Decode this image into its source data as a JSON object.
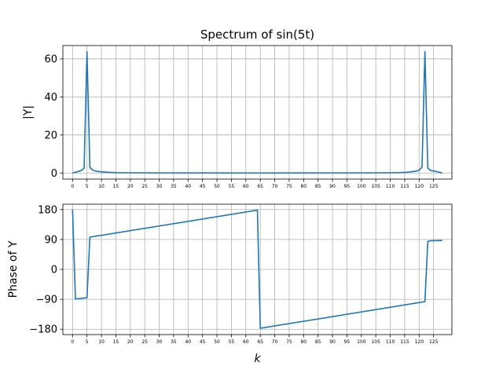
{
  "colors": {
    "line": "#1f77b4",
    "grid": "#b0b0b0"
  },
  "chart_data": [
    {
      "type": "line",
      "title": "Spectrum of sin(5t)",
      "ylabel": "|Y|",
      "xlabel": "",
      "xlim": [
        -3.35,
        131.35
      ],
      "ylim": [
        -3.2,
        67
      ],
      "grid": true,
      "xticks": [
        0,
        5,
        10,
        15,
        20,
        25,
        30,
        35,
        40,
        45,
        50,
        55,
        60,
        65,
        70,
        75,
        80,
        85,
        90,
        95,
        100,
        105,
        110,
        115,
        120,
        125
      ],
      "xtick_labels": [
        "0",
        "5",
        "10",
        "15",
        "20",
        "25",
        "30",
        "35",
        "40",
        "45",
        "50",
        "55",
        "60",
        "65",
        "70",
        "75",
        "80",
        "85",
        "90",
        "95",
        "100",
        "105",
        "110",
        "115",
        "120",
        "125"
      ],
      "yticks": [
        0,
        20,
        40,
        60
      ],
      "ytick_labels": [
        "0",
        "20",
        "40",
        "60"
      ],
      "series": [
        {
          "x": [
            0,
            2,
            3,
            4,
            5,
            6,
            7,
            8,
            10,
            12,
            15,
            20,
            30,
            64,
            98,
            108,
            113,
            116,
            119,
            120,
            121,
            122,
            123,
            124,
            126,
            128
          ],
          "y": [
            0,
            0.8,
            1.3,
            2.5,
            64,
            3,
            1.5,
            1.0,
            0.6,
            0.4,
            0.2,
            0.1,
            0.05,
            0,
            0.05,
            0.1,
            0.2,
            0.4,
            1.0,
            1.5,
            3,
            64,
            2.5,
            1.3,
            0.8,
            0
          ]
        }
      ]
    },
    {
      "type": "line",
      "title": "",
      "ylabel": "Phase of Y",
      "xlabel": "k",
      "xlim": [
        -3.35,
        131.35
      ],
      "ylim": [
        -196,
        196
      ],
      "grid": true,
      "xticks": [
        0,
        5,
        10,
        15,
        20,
        25,
        30,
        35,
        40,
        45,
        50,
        55,
        60,
        65,
        70,
        75,
        80,
        85,
        90,
        95,
        100,
        105,
        110,
        115,
        120,
        125
      ],
      "xtick_labels": [
        "0",
        "5",
        "10",
        "15",
        "20",
        "25",
        "30",
        "35",
        "40",
        "45",
        "50",
        "55",
        "60",
        "65",
        "70",
        "75",
        "80",
        "85",
        "90",
        "95",
        "100",
        "105",
        "110",
        "115",
        "120",
        "125"
      ],
      "yticks": [
        180,
        90,
        0,
        -90,
        -180
      ],
      "ytick_labels": [
        "180",
        "90",
        "0",
        "−90",
        "−180"
      ],
      "series": [
        {
          "x": [
            0,
            1,
            5,
            6,
            64,
            65,
            122,
            123,
            124,
            128
          ],
          "y": [
            180,
            -89,
            -85,
            97,
            178,
            -177,
            -97,
            84,
            86,
            87
          ]
        }
      ]
    }
  ]
}
